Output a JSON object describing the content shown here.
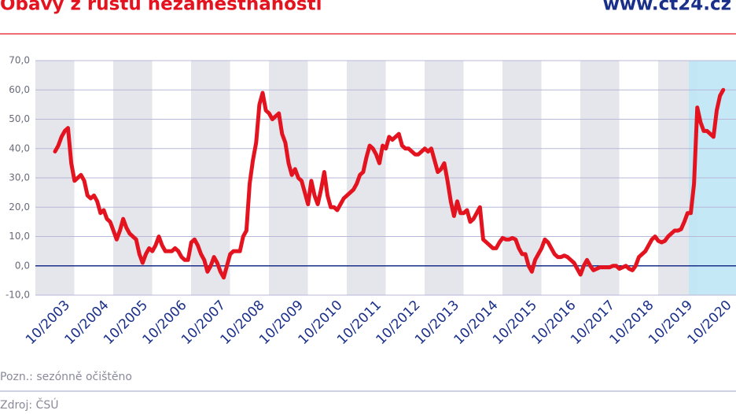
{
  "chart_data": {
    "type": "line",
    "title": "Obavy z růstu nezaměstnanosti",
    "brand": "www.ct24.cz",
    "note": "Pozn.: sezónně očištěno",
    "source": "Zdroj: ČSÚ",
    "categories": [
      "10/2003",
      null,
      null,
      null,
      null,
      null,
      null,
      null,
      null,
      null,
      null,
      null,
      "10/2004",
      null,
      null,
      null,
      null,
      null,
      null,
      null,
      null,
      null,
      null,
      null,
      "10/2005",
      null,
      null,
      null,
      null,
      null,
      null,
      null,
      null,
      null,
      null,
      null,
      "10/2006",
      null,
      null,
      null,
      null,
      null,
      null,
      null,
      null,
      null,
      null,
      null,
      "10/2007",
      null,
      null,
      null,
      null,
      null,
      null,
      null,
      null,
      null,
      null,
      null,
      "10/2008",
      null,
      null,
      null,
      null,
      null,
      null,
      null,
      null,
      null,
      null,
      null,
      "10/2009",
      null,
      null,
      null,
      null,
      null,
      null,
      null,
      null,
      null,
      null,
      null,
      "10/2010",
      null,
      null,
      null,
      null,
      null,
      null,
      null,
      null,
      null,
      null,
      null,
      "10/2011",
      null,
      null,
      null,
      null,
      null,
      null,
      null,
      null,
      null,
      null,
      null,
      "10/2012",
      null,
      null,
      null,
      null,
      null,
      null,
      null,
      null,
      null,
      null,
      null,
      "10/2013",
      null,
      null,
      null,
      null,
      null,
      null,
      null,
      null,
      null,
      null,
      null,
      "10/2014",
      null,
      null,
      null,
      null,
      null,
      null,
      null,
      null,
      null,
      null,
      null,
      "10/2015",
      null,
      null,
      null,
      null,
      null,
      null,
      null,
      null,
      null,
      null,
      null,
      "10/2016",
      null,
      null,
      null,
      null,
      null,
      null,
      null,
      null,
      null,
      null,
      null,
      "10/2017",
      null,
      null,
      null,
      null,
      null,
      null,
      null,
      null,
      null,
      null,
      null,
      "10/2018",
      null,
      null,
      null,
      null,
      null,
      null,
      null,
      null,
      null,
      null,
      null,
      "10/2019",
      null,
      null,
      null,
      null,
      null,
      null,
      null,
      null,
      null,
      null,
      null,
      "10/2020",
      null,
      null
    ],
    "values": [
      39,
      41,
      44,
      46,
      47,
      35,
      29,
      30,
      31,
      29,
      24,
      23,
      24,
      22,
      18,
      19,
      16,
      15,
      12,
      9,
      12,
      16,
      13,
      11,
      10,
      9,
      4,
      1,
      4,
      6,
      5,
      7,
      10,
      7,
      5,
      5,
      5,
      6,
      5,
      3,
      2,
      2,
      8,
      9,
      7,
      4,
      2,
      -2,
      0,
      3,
      1,
      -2,
      -4,
      0,
      4,
      5,
      5,
      5,
      10,
      12,
      28,
      36,
      42,
      55,
      59,
      53,
      52,
      50,
      51,
      52,
      45,
      42,
      35,
      31,
      33,
      30,
      29,
      25,
      21,
      29,
      24,
      21,
      26,
      32,
      24,
      20,
      20,
      19,
      21,
      23,
      24,
      25,
      26,
      28,
      31,
      32,
      37,
      41,
      40,
      38,
      35,
      41,
      40,
      44,
      43,
      44,
      45,
      41,
      40,
      40,
      39,
      38,
      38,
      39,
      40,
      39,
      40,
      36,
      32,
      33,
      35,
      29,
      22,
      17,
      22,
      18,
      18,
      19,
      15,
      16,
      18,
      20,
      9,
      8,
      7,
      6,
      6,
      8,
      9.5,
      9,
      9,
      9.5,
      9,
      6,
      4,
      4,
      0,
      -2,
      2,
      4,
      6,
      9,
      8,
      6,
      4,
      3,
      3,
      3.5,
      3,
      2,
      1,
      -1,
      -3,
      0,
      2,
      0,
      -1.5,
      -1,
      -0.5,
      -0.5,
      -0.5,
      -0.5,
      0,
      0,
      -1,
      -0.5,
      0,
      -1,
      -1.5,
      0,
      3,
      4,
      5,
      7,
      9,
      10,
      8.5,
      8,
      8.5,
      10,
      11,
      12,
      12,
      12.5,
      15,
      18,
      18,
      28,
      54,
      49,
      46,
      46,
      45,
      44,
      53,
      58,
      60
    ],
    "color": "#e3141f",
    "ylim": [
      -10,
      70
    ],
    "yticks": [
      {
        "value": -10,
        "label": "-10,0"
      },
      {
        "value": 0,
        "label": "0,0"
      },
      {
        "value": 10,
        "label": "10,0"
      },
      {
        "value": 20,
        "label": "20,0"
      },
      {
        "value": 30,
        "label": "30,0"
      },
      {
        "value": 40,
        "label": "40,0"
      },
      {
        "value": 50,
        "label": "50,0"
      },
      {
        "value": 60,
        "label": "60,0"
      },
      {
        "value": 70,
        "label": "70,0"
      }
    ],
    "grid": true
  }
}
